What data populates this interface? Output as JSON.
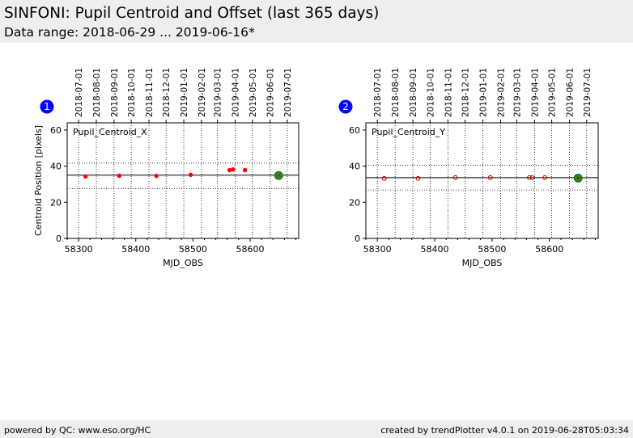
{
  "header": {
    "title": "SINFONI: Pupil Centroid and Offset (last 365 days)",
    "subtitle": "Data range: 2018-06-29 ... 2019-06-16*"
  },
  "footer": {
    "left": "powered by QC: www.eso.org/HC",
    "right": "created by trendPlotter v4.0.1 on 2019-06-28T05:03:34"
  },
  "colors": {
    "point_x": "#ff0000",
    "point_y": "#cc0000",
    "latest_point": "#228b22",
    "badge": "#0000ff",
    "axes": "#000000"
  },
  "chart_data": [
    {
      "type": "scatter",
      "panel_number": "1",
      "series_label": "Pupil_Centroid_X",
      "xlabel": "MJD_OBS",
      "ylabel": "Centroid Position [pixels]",
      "xlim": [
        58280,
        58685
      ],
      "ylim": [
        0,
        64
      ],
      "xticks": [
        58300,
        58400,
        58500,
        58600
      ],
      "yticks": [
        0,
        20,
        40,
        60
      ],
      "top_axis_dates": [
        "2018-07-01",
        "2018-08-01",
        "2018-09-01",
        "2018-10-01",
        "2018-11-01",
        "2018-12-01",
        "2019-01-01",
        "2019-02-01",
        "2019-03-01",
        "2019-04-01",
        "2019-05-01",
        "2019-06-01",
        "2019-07-01"
      ],
      "top_axis_mjd": [
        58300,
        58331,
        58362,
        58392,
        58423,
        58453,
        58484,
        58515,
        58543,
        58574,
        58604,
        58635,
        58665
      ],
      "reference_line": 35.0,
      "band_lines": [
        41.7,
        27.6
      ],
      "marker": "filled",
      "points": [
        {
          "x": 58312,
          "y": 34.3
        },
        {
          "x": 58371,
          "y": 34.7
        },
        {
          "x": 58436,
          "y": 34.6
        },
        {
          "x": 58496,
          "y": 35.2
        },
        {
          "x": 58564,
          "y": 37.8
        },
        {
          "x": 58570,
          "y": 38.2
        },
        {
          "x": 58591,
          "y": 37.8
        }
      ],
      "latest": {
        "x": 58650,
        "y": 34.8
      }
    },
    {
      "type": "scatter",
      "panel_number": "2",
      "series_label": "Pupil_Centroid_Y",
      "xlabel": "MJD_OBS",
      "ylabel": "",
      "xlim": [
        58280,
        58685
      ],
      "ylim": [
        0,
        64
      ],
      "xticks": [
        58300,
        58400,
        58500,
        58600
      ],
      "yticks": [
        0,
        20,
        40,
        60
      ],
      "top_axis_dates": [
        "2018-07-01",
        "2018-08-01",
        "2018-09-01",
        "2018-10-01",
        "2018-11-01",
        "2018-12-01",
        "2019-01-01",
        "2019-02-01",
        "2019-03-01",
        "2019-04-01",
        "2019-05-01",
        "2019-06-01",
        "2019-07-01"
      ],
      "top_axis_mjd": [
        58300,
        58331,
        58362,
        58392,
        58423,
        58453,
        58484,
        58515,
        58543,
        58574,
        58604,
        58635,
        58665
      ],
      "reference_line": 33.6,
      "band_lines": [
        40.5,
        26.8
      ],
      "marker": "open",
      "points": [
        {
          "x": 58312,
          "y": 33.2
        },
        {
          "x": 58371,
          "y": 33.2
        },
        {
          "x": 58436,
          "y": 33.7
        },
        {
          "x": 58497,
          "y": 33.7
        },
        {
          "x": 58565,
          "y": 33.7
        },
        {
          "x": 58570,
          "y": 33.7
        },
        {
          "x": 58592,
          "y": 33.7
        }
      ],
      "latest": {
        "x": 58650,
        "y": 33.4
      }
    }
  ]
}
